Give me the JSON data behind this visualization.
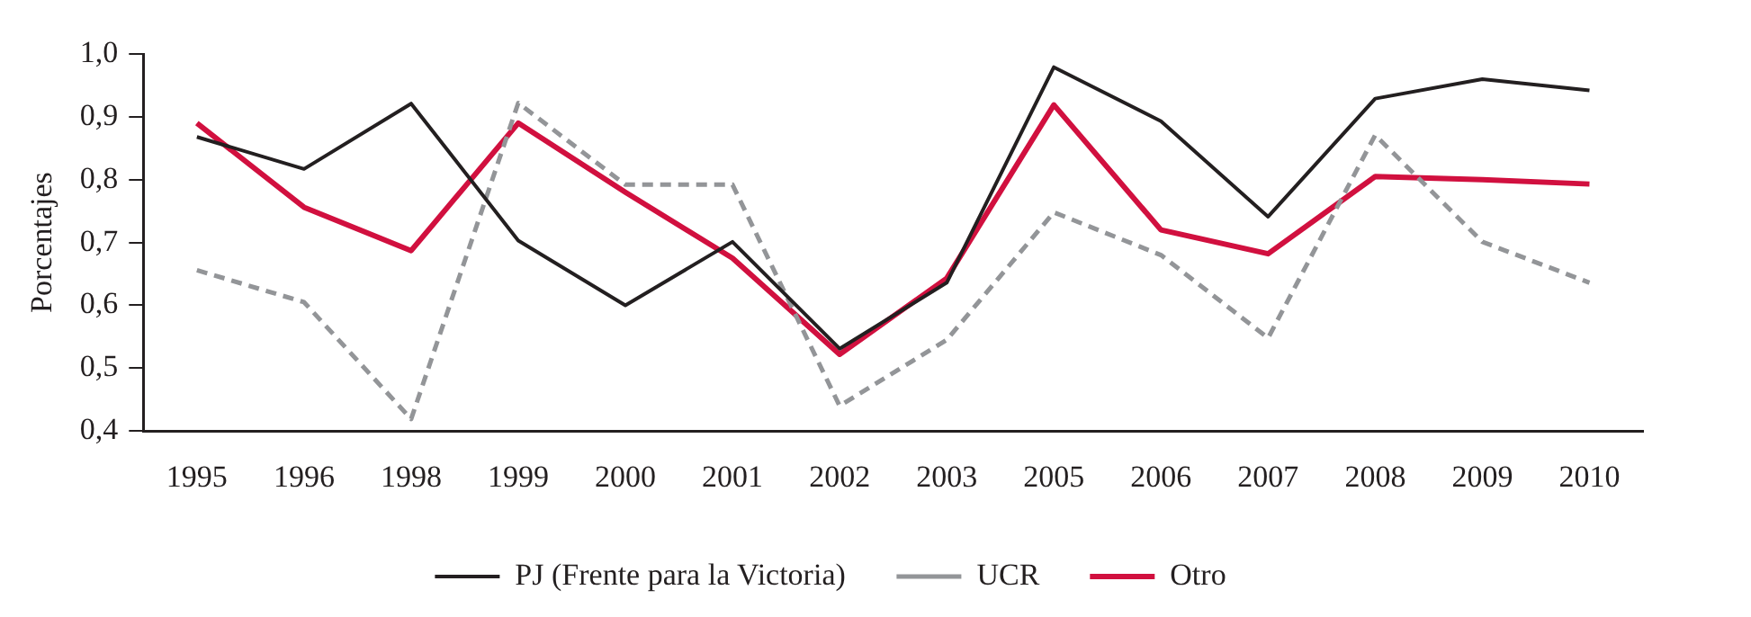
{
  "chart_data": {
    "type": "line",
    "ylabel": "Porcentajes",
    "categories": [
      "1995",
      "1996",
      "1998",
      "1999",
      "2000",
      "2001",
      "2002",
      "2003",
      "2005",
      "2006",
      "2007",
      "2008",
      "2009",
      "2010"
    ],
    "series": [
      {
        "name": "PJ (Frente para la Victoria)",
        "color": "#231f20",
        "line_style": "solid",
        "values": [
          0.868,
          0.817,
          0.921,
          0.703,
          0.6,
          0.701,
          0.531,
          0.636,
          0.979,
          0.893,
          0.741,
          0.929,
          0.96,
          0.942
        ]
      },
      {
        "name": "UCR",
        "color": "#939598",
        "line_style": "dashed",
        "values": [
          0.656,
          0.605,
          0.419,
          0.922,
          0.792,
          0.792,
          0.44,
          0.545,
          0.748,
          0.68,
          0.548,
          0.871,
          0.701,
          0.636
        ]
      },
      {
        "name": "Otro",
        "color": "#d1103f",
        "line_style": "solid",
        "values": [
          0.89,
          0.756,
          0.687,
          0.89,
          0.78,
          0.675,
          0.522,
          0.643,
          0.919,
          0.72,
          0.682,
          0.805,
          0.8,
          0.793
        ]
      }
    ],
    "ylim": [
      0.4,
      1.0
    ],
    "yticks": [
      {
        "value": 0.4,
        "label": "0,4"
      },
      {
        "value": 0.5,
        "label": "0,5"
      },
      {
        "value": 0.6,
        "label": "0,6"
      },
      {
        "value": 0.7,
        "label": "0,7"
      },
      {
        "value": 0.8,
        "label": "0,8"
      },
      {
        "value": 0.9,
        "label": "0,9"
      },
      {
        "value": 1.0,
        "label": "1,0"
      }
    ],
    "grid": false,
    "legend": "bottom",
    "marker": "none"
  }
}
